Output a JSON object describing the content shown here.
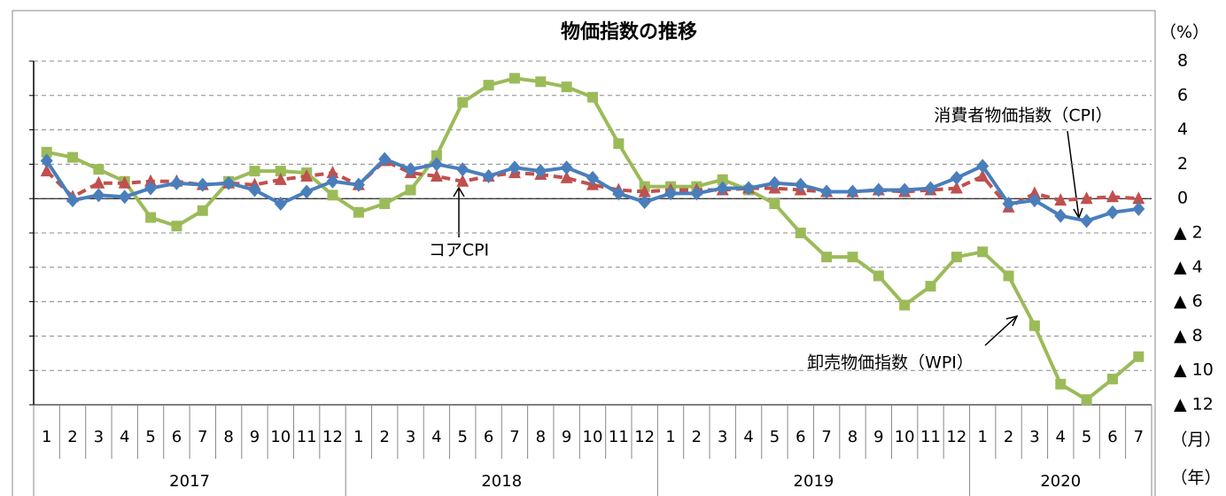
{
  "chart_data": {
    "type": "line",
    "title": "物価指数の推移",
    "y_unit": "（%）",
    "x_unit_month": "（月）",
    "x_unit_year": "（年）",
    "categories": [
      [
        "2017",
        "1"
      ],
      [
        "2017",
        "2"
      ],
      [
        "2017",
        "3"
      ],
      [
        "2017",
        "4"
      ],
      [
        "2017",
        "5"
      ],
      [
        "2017",
        "6"
      ],
      [
        "2017",
        "7"
      ],
      [
        "2017",
        "8"
      ],
      [
        "2017",
        "9"
      ],
      [
        "2017",
        "10"
      ],
      [
        "2017",
        "11"
      ],
      [
        "2017",
        "12"
      ],
      [
        "2018",
        "1"
      ],
      [
        "2018",
        "2"
      ],
      [
        "2018",
        "3"
      ],
      [
        "2018",
        "4"
      ],
      [
        "2018",
        "5"
      ],
      [
        "2018",
        "6"
      ],
      [
        "2018",
        "7"
      ],
      [
        "2018",
        "8"
      ],
      [
        "2018",
        "9"
      ],
      [
        "2018",
        "10"
      ],
      [
        "2018",
        "11"
      ],
      [
        "2018",
        "12"
      ],
      [
        "2019",
        "1"
      ],
      [
        "2019",
        "2"
      ],
      [
        "2019",
        "3"
      ],
      [
        "2019",
        "4"
      ],
      [
        "2019",
        "5"
      ],
      [
        "2019",
        "6"
      ],
      [
        "2019",
        "7"
      ],
      [
        "2019",
        "8"
      ],
      [
        "2019",
        "9"
      ],
      [
        "2019",
        "10"
      ],
      [
        "2019",
        "11"
      ],
      [
        "2019",
        "12"
      ],
      [
        "2020",
        "1"
      ],
      [
        "2020",
        "2"
      ],
      [
        "2020",
        "3"
      ],
      [
        "2020",
        "4"
      ],
      [
        "2020",
        "5"
      ],
      [
        "2020",
        "6"
      ],
      [
        "2020",
        "7"
      ]
    ],
    "series": [
      {
        "name": "消費者物価指数（CPI）",
        "color": "#4a7ebb",
        "marker": "diamond",
        "dashed": false,
        "values": [
          2.2,
          -0.1,
          0.2,
          0.1,
          0.6,
          0.9,
          0.8,
          0.9,
          0.5,
          -0.3,
          0.4,
          1.0,
          0.8,
          2.3,
          1.7,
          2.0,
          1.7,
          1.3,
          1.8,
          1.6,
          1.8,
          1.2,
          0.3,
          -0.2,
          0.3,
          0.3,
          0.6,
          0.6,
          0.9,
          0.8,
          0.4,
          0.4,
          0.5,
          0.5,
          0.6,
          1.2,
          1.9,
          -0.3,
          -0.1,
          -1.0,
          -1.3,
          -0.8,
          -0.6
        ]
      },
      {
        "name": "コアCPI",
        "color": "#c0504d",
        "marker": "triangle",
        "dashed": true,
        "values": [
          1.6,
          0.1,
          0.9,
          0.9,
          1.0,
          1.0,
          0.8,
          0.9,
          0.8,
          1.1,
          1.3,
          1.5,
          0.8,
          2.2,
          1.5,
          1.3,
          1.0,
          1.3,
          1.5,
          1.4,
          1.2,
          0.8,
          0.5,
          0.4,
          0.5,
          0.5,
          0.5,
          0.6,
          0.6,
          0.5,
          0.4,
          0.4,
          0.5,
          0.4,
          0.5,
          0.6,
          1.3,
          -0.5,
          0.3,
          -0.1,
          0.0,
          0.1,
          0.0
        ]
      },
      {
        "name": "卸売物価指数（WPI）",
        "color": "#9bbb59",
        "marker": "square",
        "dashed": false,
        "values": [
          2.7,
          2.4,
          1.7,
          1.0,
          -1.1,
          -1.6,
          -0.7,
          1.0,
          1.6,
          1.6,
          1.5,
          0.2,
          -0.8,
          -0.3,
          0.5,
          2.5,
          5.6,
          6.6,
          7.0,
          6.8,
          6.5,
          5.9,
          3.2,
          0.7,
          0.7,
          0.7,
          1.1,
          0.5,
          -0.3,
          -2.0,
          -3.4,
          -3.4,
          -4.5,
          -6.2,
          -5.1,
          -3.4,
          -3.1,
          -4.5,
          -7.4,
          -10.8,
          -11.7,
          -10.5,
          -9.2
        ]
      }
    ],
    "ylim": [
      -12,
      8
    ],
    "yticks": [
      8,
      6,
      4,
      2,
      0,
      {
        "value": -2,
        "label": "▲ 2"
      },
      {
        "value": -4,
        "label": "▲ 4"
      },
      {
        "value": -6,
        "label": "▲ 6"
      },
      {
        "value": -8,
        "label": "▲ 8"
      },
      {
        "value": -10,
        "label": "▲ 10"
      },
      {
        "value": -12,
        "label": "▲ 12"
      }
    ],
    "grid": true
  }
}
